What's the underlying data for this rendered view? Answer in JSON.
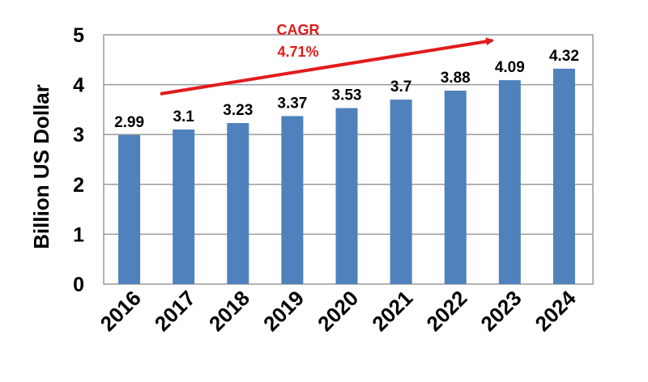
{
  "chart_data": {
    "type": "bar",
    "categories": [
      "2016",
      "2017",
      "2018",
      "2019",
      "2020",
      "2021",
      "2022",
      "2023",
      "2024"
    ],
    "values": [
      2.99,
      3.1,
      3.23,
      3.37,
      3.53,
      3.7,
      3.88,
      4.09,
      4.32
    ],
    "value_labels": [
      "2.99",
      "3.1",
      "3.23",
      "3.37",
      "3.53",
      "3.7",
      "3.88",
      "4.09",
      "4.32"
    ],
    "ylabel": "Billion US Dollar",
    "ylim": [
      0,
      5
    ],
    "yticks": [
      "0",
      "1",
      "2",
      "3",
      "4",
      "5"
    ],
    "grid": true,
    "bar_color": "#4f81bd",
    "annotation": {
      "label": "CAGR",
      "value": "4.71%",
      "color": "#e21b1b"
    }
  }
}
